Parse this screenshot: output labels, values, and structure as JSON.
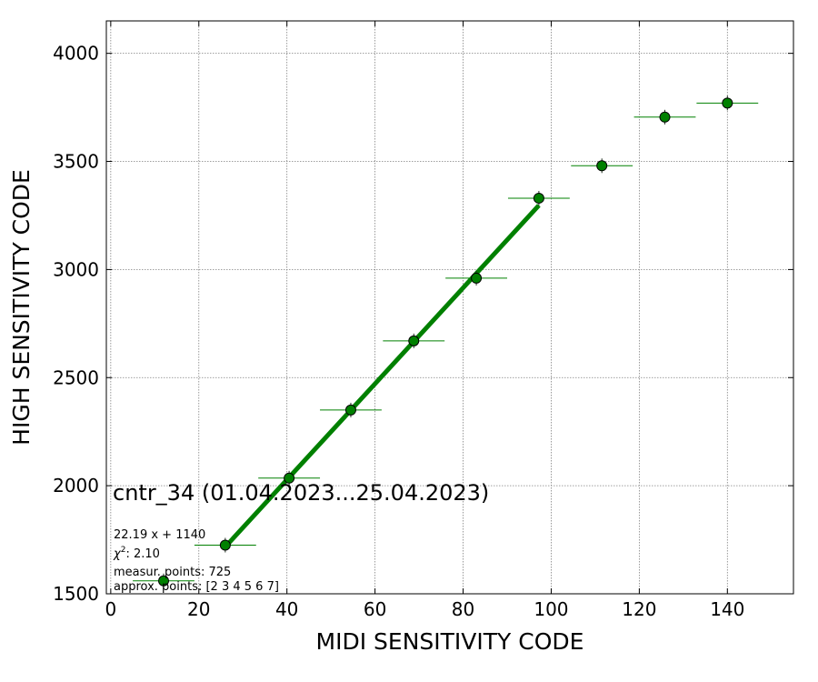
{
  "chart_data": {
    "type": "scatter",
    "xlabel": "MIDI SENSITIVITY CODE",
    "ylabel": "HIGH SENSITIVITY CODE",
    "xlim": [
      -1,
      155
    ],
    "ylim": [
      1500,
      4150
    ],
    "xticks": [
      0,
      20,
      40,
      60,
      80,
      100,
      120,
      140
    ],
    "yticks": [
      1500,
      2000,
      2500,
      3000,
      3500,
      4000
    ],
    "grid": true,
    "point_color": "#008000",
    "fit_color": "#008000",
    "points": [
      {
        "x": 12,
        "y": 1560,
        "xerr": 7
      },
      {
        "x": 26,
        "y": 1725,
        "xerr": 7
      },
      {
        "x": 40.5,
        "y": 2035,
        "xerr": 7
      },
      {
        "x": 54.5,
        "y": 2350,
        "xerr": 7
      },
      {
        "x": 68.8,
        "y": 2670,
        "xerr": 7
      },
      {
        "x": 83,
        "y": 2960,
        "xerr": 7
      },
      {
        "x": 97.2,
        "y": 3330,
        "xerr": 7
      },
      {
        "x": 111.5,
        "y": 3480,
        "xerr": 7
      },
      {
        "x": 125.8,
        "y": 3705,
        "xerr": 7
      },
      {
        "x": 140,
        "y": 3770,
        "xerr": 7
      }
    ],
    "fit": {
      "slope": 22.19,
      "intercept": 1140,
      "x_range": [
        26,
        97.2
      ]
    },
    "annotations": {
      "title": "cntr_34 (01.04.2023...25.04.2023)",
      "equation": "22.19 x + 1140",
      "chi2_label": "χ",
      "chi2_sup": "2",
      "chi2_value": ": 2.10",
      "measur_points": "measur. points: 725",
      "approx_points": "approx. points: [2 3 4 5 6 7]"
    }
  }
}
